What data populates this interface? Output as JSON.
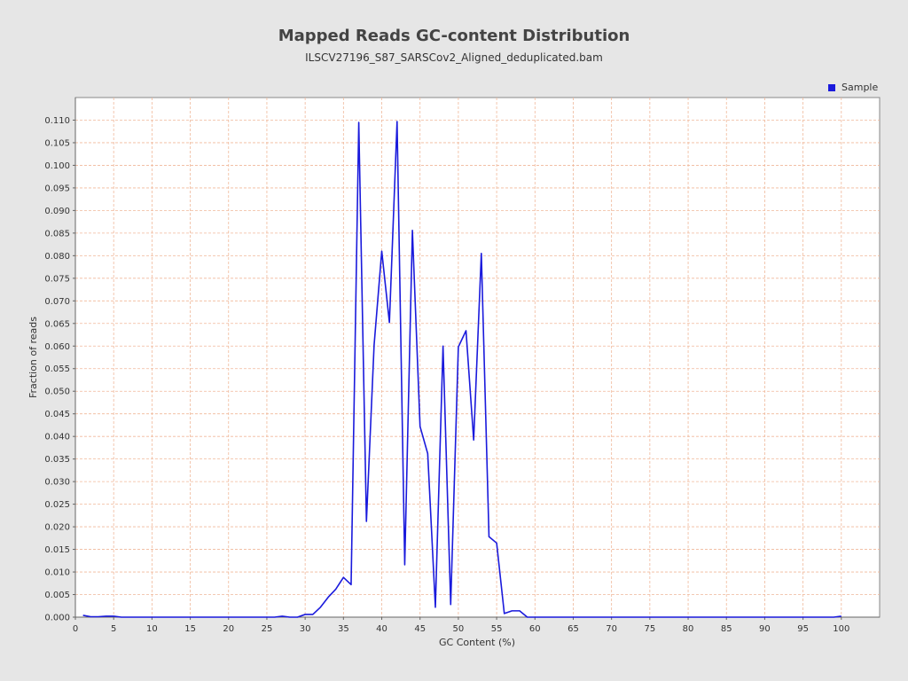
{
  "header": {
    "title": "Mapped Reads GC-content Distribution",
    "subtitle": "ILSCV27196_S87_SARSCov2_Aligned_deduplicated.bam"
  },
  "chart_data": {
    "type": "line",
    "title": "Mapped Reads GC-content Distribution",
    "subtitle": "ILSCV27196_S87_SARSCov2_Aligned_deduplicated.bam",
    "xlabel": "GC Content (%)",
    "ylabel": "Fraction of reads",
    "xlim": [
      0,
      105
    ],
    "ylim": [
      0,
      0.115
    ],
    "x_ticks": [
      0,
      5,
      10,
      15,
      20,
      25,
      30,
      35,
      40,
      45,
      50,
      55,
      60,
      65,
      70,
      75,
      80,
      85,
      90,
      95,
      100
    ],
    "y_ticks": [
      0.0,
      0.005,
      0.01,
      0.015,
      0.02,
      0.025,
      0.03,
      0.035,
      0.04,
      0.045,
      0.05,
      0.055,
      0.06,
      0.065,
      0.07,
      0.075,
      0.08,
      0.085,
      0.09,
      0.095,
      0.1,
      0.105,
      0.11
    ],
    "y_tick_decimals": 3,
    "grid": true,
    "legend_position": "top-right",
    "colors": {
      "series": "#1a1adc",
      "grid": "#f0b89a",
      "plot_bg": "#ffffff",
      "page_bg": "#e6e6e6"
    },
    "series": [
      {
        "name": "Sample",
        "x": [
          1,
          2,
          3,
          4,
          5,
          6,
          7,
          8,
          9,
          10,
          11,
          12,
          13,
          14,
          15,
          16,
          17,
          18,
          19,
          20,
          21,
          22,
          23,
          24,
          25,
          26,
          27,
          28,
          29,
          30,
          31,
          32,
          33,
          34,
          35,
          36,
          37,
          38,
          39,
          40,
          41,
          42,
          43,
          44,
          45,
          46,
          47,
          48,
          49,
          50,
          51,
          52,
          53,
          54,
          55,
          56,
          57,
          58,
          59,
          60,
          61,
          62,
          63,
          64,
          65,
          66,
          67,
          68,
          69,
          70,
          71,
          72,
          73,
          74,
          75,
          76,
          77,
          78,
          79,
          80,
          81,
          82,
          83,
          84,
          85,
          86,
          87,
          88,
          89,
          90,
          91,
          92,
          93,
          94,
          95,
          96,
          97,
          98,
          99,
          100
        ],
        "y": [
          0.0004,
          0.0001,
          0.0001,
          0.0002,
          0.0002,
          0,
          0,
          0,
          0,
          0,
          0,
          0,
          0,
          0,
          0,
          0,
          0,
          0,
          0,
          0,
          0,
          0,
          0,
          0,
          0,
          0,
          0.0002,
          0,
          0,
          0.0006,
          0.0006,
          0.0022,
          0.0044,
          0.0062,
          0.0088,
          0.0072,
          0.1095,
          0.0212,
          0.0602,
          0.081,
          0.0652,
          0.1097,
          0.0116,
          0.0856,
          0.0422,
          0.0362,
          0.0022,
          0.06,
          0.0028,
          0.0598,
          0.0634,
          0.0392,
          0.0805,
          0.0178,
          0.0164,
          0.0008,
          0.0014,
          0.0014,
          0,
          0,
          0,
          0,
          0,
          0,
          0,
          0,
          0,
          0,
          0,
          0,
          0,
          0,
          0,
          0,
          0,
          0,
          0,
          0,
          0,
          0,
          0,
          0,
          0,
          0,
          0,
          0,
          0,
          0,
          0,
          0,
          0,
          0,
          0,
          0,
          0,
          0,
          0,
          0,
          0,
          0.0002
        ]
      }
    ]
  }
}
